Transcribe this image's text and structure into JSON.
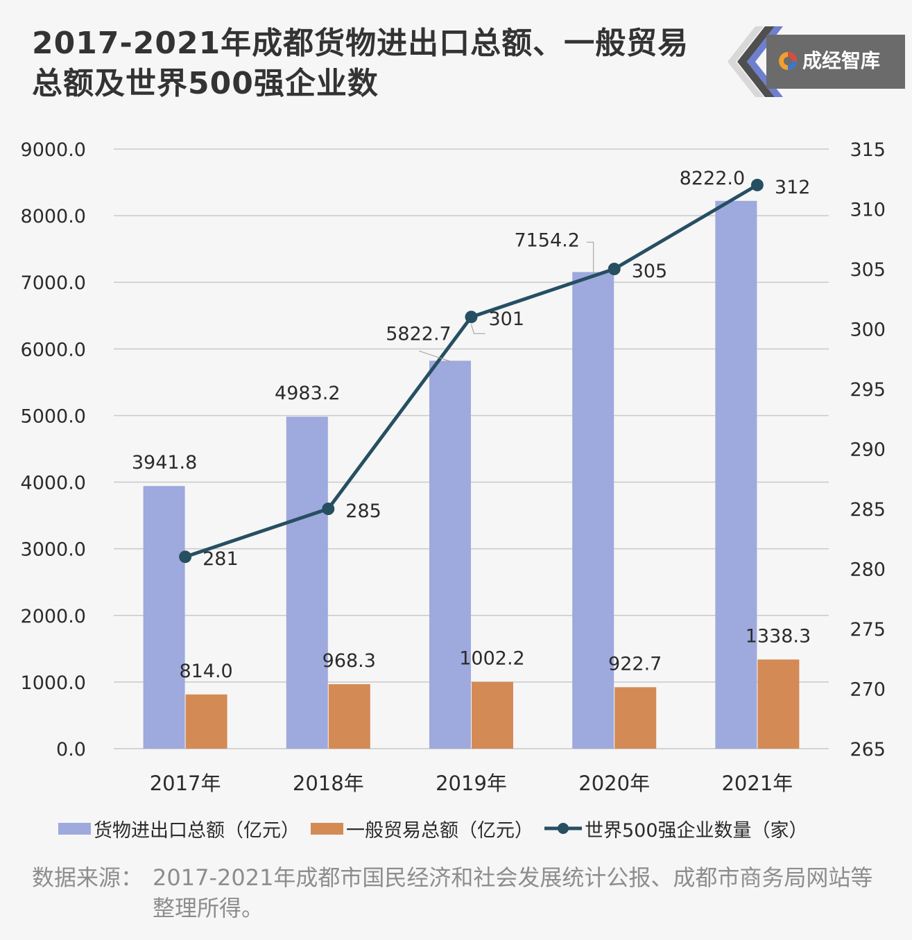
{
  "title": "2017-2021年成都货物进出口总额、一般贸易总额及世界500强企业数",
  "brand": {
    "name": "成经智库",
    "logo_icon": "swirl-logo-icon"
  },
  "source": {
    "label": "数据来源：",
    "text": "2017-2021年成都市国民经济和社会发展统计公报、成都市商务局网站等整理所得。"
  },
  "colors": {
    "bar1": "#9ea9dd",
    "bar2": "#d48a55",
    "line": "#264f62",
    "grid": "#c9c9c9",
    "text": "#2b2b2b"
  },
  "chart_data": {
    "type": "bar",
    "categories": [
      "2017年",
      "2018年",
      "2019年",
      "2020年",
      "2021年"
    ],
    "series": [
      {
        "name": "货物进出口总额（亿元）",
        "type": "bar",
        "axis": "left",
        "values": [
          3941.8,
          4983.2,
          5822.7,
          7154.2,
          8222.0
        ],
        "labels": [
          "3941.8",
          "4983.2",
          "5822.7",
          "7154.2",
          "8222.0"
        ]
      },
      {
        "name": "一般贸易总额（亿元）",
        "type": "bar",
        "axis": "left",
        "values": [
          814.0,
          968.3,
          1002.2,
          922.7,
          1338.3
        ],
        "labels": [
          "814.0",
          "968.3",
          "1002.2",
          "922.7",
          "1338.3"
        ]
      },
      {
        "name": "世界500强企业数量（家）",
        "type": "line",
        "axis": "right",
        "values": [
          281,
          285,
          301,
          305,
          312
        ],
        "labels": [
          "281",
          "285",
          "301",
          "305",
          "312"
        ]
      }
    ],
    "y_left": {
      "range": [
        0,
        9000
      ],
      "ticks": [
        "0.0",
        "1000.0",
        "2000.0",
        "3000.0",
        "4000.0",
        "5000.0",
        "6000.0",
        "7000.0",
        "8000.0",
        "9000.0"
      ]
    },
    "y_right": {
      "range": [
        265,
        315
      ],
      "ticks": [
        "265",
        "270",
        "275",
        "280",
        "285",
        "290",
        "295",
        "300",
        "305",
        "310",
        "315"
      ]
    },
    "grid": true,
    "legend_position": "bottom"
  }
}
